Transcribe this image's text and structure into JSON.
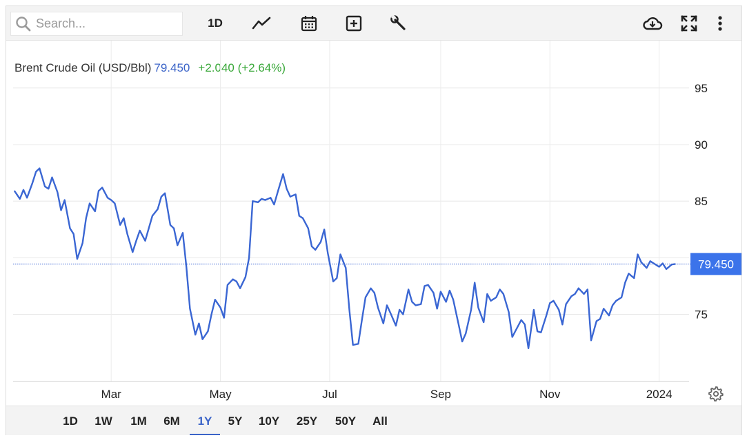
{
  "toolbar": {
    "search_placeholder": "Search...",
    "interval_label": "1D",
    "icons": [
      "search-icon",
      "line-chart-icon",
      "calendar-icon",
      "plus-square-icon",
      "wrench-icon",
      "cloud-download-icon",
      "fullscreen-icon",
      "more-vertical-icon"
    ]
  },
  "header": {
    "name": "Brent Crude Oil (USD/Bbl)",
    "price": "79.450",
    "change": "+2.040 (+2.64%)"
  },
  "price_tag": "79.450",
  "ranges": {
    "items": [
      "1D",
      "1W",
      "1M",
      "6M",
      "1Y",
      "5Y",
      "10Y",
      "25Y",
      "50Y",
      "All"
    ],
    "active": "1Y"
  },
  "colors": {
    "line": "#3a66d3",
    "price_tag_bg": "#3b73ea",
    "change": "#3aa83a",
    "active_range": "#3b64c8"
  },
  "chart_data": {
    "type": "line",
    "title": "Brent Crude Oil (USD/Bbl)",
    "xlabel": "",
    "ylabel": "",
    "x_range": [
      "2023-01-06",
      "2024-01-10"
    ],
    "ylim": [
      70,
      99
    ],
    "y_axis_position": "right",
    "grid": true,
    "y_ticks": [
      75,
      80,
      85,
      90,
      95
    ],
    "x_ticks": [
      {
        "date": "2023-03-01",
        "label": "Mar"
      },
      {
        "date": "2023-05-01",
        "label": "May"
      },
      {
        "date": "2023-07-01",
        "label": "Jul"
      },
      {
        "date": "2023-09-01",
        "label": "Sep"
      },
      {
        "date": "2023-11-01",
        "label": "Nov"
      },
      {
        "date": "2024-01-01",
        "label": "2024"
      }
    ],
    "last_value": 79.45,
    "series": [
      {
        "values": [
          [
            "2023-01-06",
            85.9
          ],
          [
            "2023-01-09",
            85.2
          ],
          [
            "2023-01-11",
            86.0
          ],
          [
            "2023-01-13",
            85.3
          ],
          [
            "2023-01-16",
            86.6
          ],
          [
            "2023-01-18",
            87.6
          ],
          [
            "2023-01-20",
            87.9
          ],
          [
            "2023-01-23",
            86.3
          ],
          [
            "2023-01-25",
            86.1
          ],
          [
            "2023-01-27",
            87.1
          ],
          [
            "2023-01-30",
            85.8
          ],
          [
            "2023-02-01",
            84.2
          ],
          [
            "2023-02-03",
            85.1
          ],
          [
            "2023-02-06",
            82.6
          ],
          [
            "2023-02-08",
            82.1
          ],
          [
            "2023-02-10",
            79.9
          ],
          [
            "2023-02-13",
            81.3
          ],
          [
            "2023-02-15",
            83.5
          ],
          [
            "2023-02-17",
            84.8
          ],
          [
            "2023-02-20",
            84.1
          ],
          [
            "2023-02-22",
            85.9
          ],
          [
            "2023-02-24",
            86.2
          ],
          [
            "2023-02-27",
            85.3
          ],
          [
            "2023-03-01",
            85.1
          ],
          [
            "2023-03-03",
            84.8
          ],
          [
            "2023-03-06",
            82.9
          ],
          [
            "2023-03-08",
            83.5
          ],
          [
            "2023-03-10",
            82.1
          ],
          [
            "2023-03-13",
            80.5
          ],
          [
            "2023-03-15",
            81.5
          ],
          [
            "2023-03-17",
            82.4
          ],
          [
            "2023-03-20",
            81.5
          ],
          [
            "2023-03-22",
            82.6
          ],
          [
            "2023-03-24",
            83.7
          ],
          [
            "2023-03-27",
            84.3
          ],
          [
            "2023-03-29",
            85.4
          ],
          [
            "2023-03-31",
            85.7
          ],
          [
            "2023-04-03",
            82.9
          ],
          [
            "2023-04-05",
            82.6
          ],
          [
            "2023-04-07",
            81.1
          ],
          [
            "2023-04-10",
            82.2
          ],
          [
            "2023-04-12",
            79.2
          ],
          [
            "2023-04-14",
            75.5
          ],
          [
            "2023-04-17",
            73.2
          ],
          [
            "2023-04-19",
            74.2
          ],
          [
            "2023-04-21",
            72.8
          ],
          [
            "2023-04-24",
            73.5
          ],
          [
            "2023-04-26",
            75.0
          ],
          [
            "2023-04-28",
            76.3
          ],
          [
            "2023-05-01",
            75.6
          ],
          [
            "2023-05-03",
            74.7
          ],
          [
            "2023-05-05",
            77.6
          ],
          [
            "2023-05-08",
            78.1
          ],
          [
            "2023-05-10",
            77.9
          ],
          [
            "2023-05-12",
            77.3
          ],
          [
            "2023-05-15",
            78.3
          ],
          [
            "2023-05-17",
            80.0
          ],
          [
            "2023-05-19",
            85.0
          ],
          [
            "2023-05-22",
            84.9
          ],
          [
            "2023-05-24",
            85.2
          ],
          [
            "2023-05-26",
            85.1
          ],
          [
            "2023-05-29",
            85.3
          ],
          [
            "2023-05-31",
            84.7
          ],
          [
            "2023-06-02",
            85.8
          ],
          [
            "2023-06-05",
            87.4
          ],
          [
            "2023-06-07",
            86.1
          ],
          [
            "2023-06-09",
            85.4
          ],
          [
            "2023-06-12",
            85.6
          ],
          [
            "2023-06-14",
            83.7
          ],
          [
            "2023-06-16",
            83.5
          ],
          [
            "2023-06-19",
            82.6
          ],
          [
            "2023-06-21",
            81.0
          ],
          [
            "2023-06-23",
            80.7
          ],
          [
            "2023-06-26",
            81.4
          ],
          [
            "2023-06-28",
            82.5
          ],
          [
            "2023-06-30",
            80.4
          ],
          [
            "2023-07-03",
            77.9
          ],
          [
            "2023-07-05",
            78.2
          ],
          [
            "2023-07-07",
            80.3
          ],
          [
            "2023-07-10",
            79.1
          ],
          [
            "2023-07-12",
            75.4
          ],
          [
            "2023-07-14",
            72.3
          ],
          [
            "2023-07-17",
            72.4
          ],
          [
            "2023-07-19",
            74.5
          ],
          [
            "2023-07-21",
            76.5
          ],
          [
            "2023-07-24",
            77.3
          ],
          [
            "2023-07-26",
            76.9
          ],
          [
            "2023-07-28",
            75.6
          ],
          [
            "2023-07-31",
            74.2
          ],
          [
            "2023-08-02",
            75.8
          ],
          [
            "2023-08-04",
            75.1
          ],
          [
            "2023-08-07",
            74.0
          ],
          [
            "2023-08-09",
            75.4
          ],
          [
            "2023-08-11",
            75.0
          ],
          [
            "2023-08-14",
            77.2
          ],
          [
            "2023-08-16",
            76.1
          ],
          [
            "2023-08-18",
            75.8
          ],
          [
            "2023-08-21",
            75.9
          ],
          [
            "2023-08-23",
            77.5
          ],
          [
            "2023-08-25",
            77.6
          ],
          [
            "2023-08-28",
            76.9
          ],
          [
            "2023-08-30",
            75.5
          ],
          [
            "2023-09-01",
            77.0
          ],
          [
            "2023-09-04",
            76.1
          ],
          [
            "2023-09-06",
            77.1
          ],
          [
            "2023-09-08",
            76.3
          ],
          [
            "2023-09-11",
            74.1
          ],
          [
            "2023-09-13",
            72.6
          ],
          [
            "2023-09-15",
            73.3
          ],
          [
            "2023-09-18",
            75.4
          ],
          [
            "2023-09-20",
            77.8
          ],
          [
            "2023-09-22",
            75.6
          ],
          [
            "2023-09-25",
            74.3
          ],
          [
            "2023-09-27",
            76.8
          ],
          [
            "2023-09-29",
            76.2
          ],
          [
            "2023-10-02",
            76.5
          ],
          [
            "2023-10-04",
            77.2
          ],
          [
            "2023-10-06",
            76.8
          ],
          [
            "2023-10-09",
            75.2
          ],
          [
            "2023-10-11",
            73.0
          ],
          [
            "2023-10-13",
            73.6
          ],
          [
            "2023-10-16",
            74.5
          ],
          [
            "2023-10-18",
            74.1
          ],
          [
            "2023-10-20",
            72.0
          ],
          [
            "2023-10-23",
            75.4
          ],
          [
            "2023-10-25",
            73.5
          ],
          [
            "2023-10-27",
            73.4
          ],
          [
            "2023-10-30",
            74.9
          ],
          [
            "2023-11-01",
            76.0
          ],
          [
            "2023-11-03",
            76.2
          ],
          [
            "2023-11-06",
            75.4
          ],
          [
            "2023-11-08",
            74.1
          ],
          [
            "2023-11-10",
            75.9
          ],
          [
            "2023-11-13",
            76.6
          ],
          [
            "2023-11-15",
            76.8
          ],
          [
            "2023-11-17",
            77.3
          ],
          [
            "2023-11-20",
            76.8
          ],
          [
            "2023-11-22",
            77.2
          ],
          [
            "2023-11-24",
            72.7
          ],
          [
            "2023-11-27",
            74.4
          ],
          [
            "2023-11-29",
            74.6
          ],
          [
            "2023-12-01",
            75.5
          ],
          [
            "2023-12-04",
            74.9
          ],
          [
            "2023-12-06",
            75.8
          ],
          [
            "2023-12-08",
            76.2
          ],
          [
            "2023-12-11",
            76.5
          ],
          [
            "2023-12-13",
            77.8
          ],
          [
            "2023-12-15",
            78.6
          ],
          [
            "2023-12-18",
            78.2
          ],
          [
            "2023-12-20",
            80.3
          ],
          [
            "2023-12-22",
            79.6
          ],
          [
            "2023-12-25",
            79.1
          ],
          [
            "2023-12-27",
            79.7
          ],
          [
            "2023-12-29",
            79.5
          ],
          [
            "2024-01-01",
            79.2
          ],
          [
            "2024-01-03",
            79.5
          ],
          [
            "2024-01-05",
            79.0
          ],
          [
            "2024-01-08",
            79.4
          ],
          [
            "2024-01-10",
            79.45
          ]
        ]
      }
    ]
  }
}
